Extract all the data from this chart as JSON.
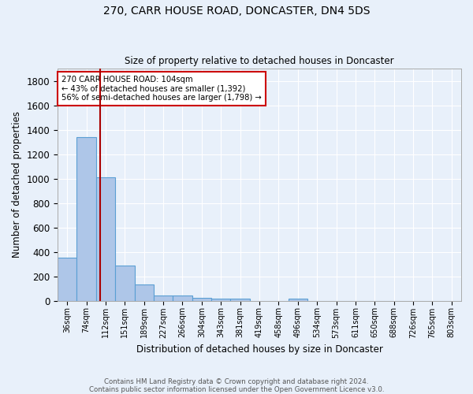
{
  "title": "270, CARR HOUSE ROAD, DONCASTER, DN4 5DS",
  "subtitle": "Size of property relative to detached houses in Doncaster",
  "xlabel": "Distribution of detached houses by size in Doncaster",
  "ylabel": "Number of detached properties",
  "footer_line1": "Contains HM Land Registry data © Crown copyright and database right 2024.",
  "footer_line2": "Contains public sector information licensed under the Open Government Licence v3.0.",
  "bins": [
    "36sqm",
    "74sqm",
    "112sqm",
    "151sqm",
    "189sqm",
    "227sqm",
    "266sqm",
    "304sqm",
    "343sqm",
    "381sqm",
    "419sqm",
    "458sqm",
    "496sqm",
    "534sqm",
    "573sqm",
    "611sqm",
    "650sqm",
    "688sqm",
    "726sqm",
    "765sqm",
    "803sqm"
  ],
  "values": [
    355,
    1340,
    1010,
    287,
    130,
    43,
    43,
    25,
    18,
    15,
    0,
    0,
    18,
    0,
    0,
    0,
    0,
    0,
    0,
    0,
    0
  ],
  "ylim": [
    0,
    1900
  ],
  "yticks": [
    0,
    200,
    400,
    600,
    800,
    1000,
    1200,
    1400,
    1600,
    1800
  ],
  "bar_color": "#aec6e8",
  "bar_edge_color": "#5a9fd4",
  "bg_color": "#e8f0fa",
  "grid_color": "#ffffff",
  "red_line_x": 1.72,
  "annotation_text": "270 CARR HOUSE ROAD: 104sqm\n← 43% of detached houses are smaller (1,392)\n56% of semi-detached houses are larger (1,798) →",
  "annotation_box_color": "#ffffff",
  "annotation_box_edge": "#cc0000",
  "red_line_color": "#aa0000"
}
